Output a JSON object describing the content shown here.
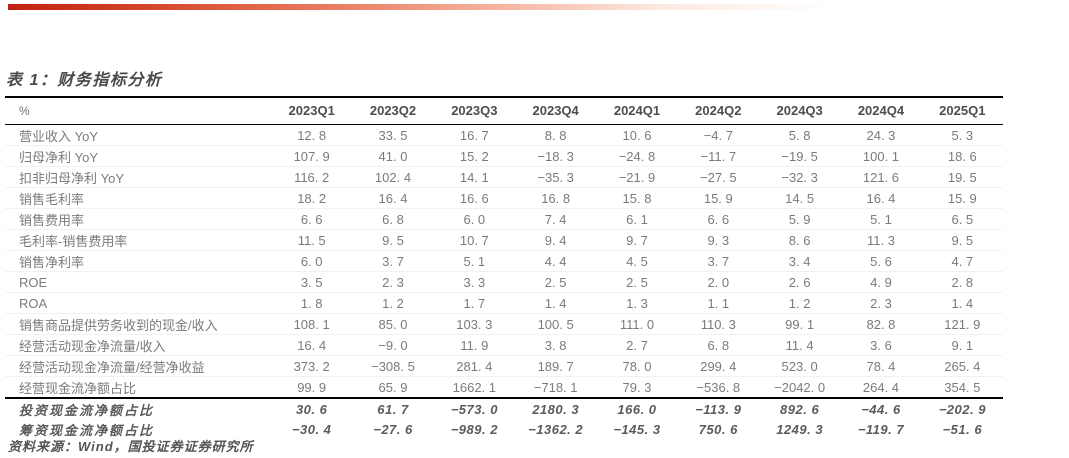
{
  "table_title": "表 1：财务指标分析",
  "colors": {
    "bar_gradient_start": "#c02112",
    "bar_gradient_end": "#ffffff",
    "table_border": "#000000",
    "body_text": "#7b7b7b",
    "header_text": "#4f4d4d",
    "title_text": "#4a4a4a"
  },
  "table": {
    "unit_header": "%",
    "columns": [
      "2023Q1",
      "2023Q2",
      "2023Q3",
      "2023Q4",
      "2024Q1",
      "2024Q2",
      "2024Q3",
      "2024Q4",
      "2025Q1"
    ],
    "rows": [
      {
        "label": "营业收入 YoY",
        "emphasis": false,
        "values": [
          "12. 8",
          "33. 5",
          "16. 7",
          "8. 8",
          "10. 6",
          "−4. 7",
          "5. 8",
          "24. 3",
          "5. 3"
        ]
      },
      {
        "label": "归母净利 YoY",
        "emphasis": false,
        "values": [
          "107. 9",
          "41. 0",
          "15. 2",
          "−18. 3",
          "−24. 8",
          "−11. 7",
          "−19. 5",
          "100. 1",
          "18. 6"
        ]
      },
      {
        "label": "扣非归母净利 YoY",
        "emphasis": false,
        "values": [
          "116. 2",
          "102. 4",
          "14. 1",
          "−35. 3",
          "−21. 9",
          "−27. 5",
          "−32. 3",
          "121. 6",
          "19. 5"
        ]
      },
      {
        "label": "销售毛利率",
        "emphasis": false,
        "values": [
          "18. 2",
          "16. 4",
          "16. 6",
          "16. 8",
          "15. 8",
          "15. 9",
          "14. 5",
          "16. 4",
          "15. 9"
        ]
      },
      {
        "label": "销售费用率",
        "emphasis": false,
        "values": [
          "6. 6",
          "6. 8",
          "6. 0",
          "7. 4",
          "6. 1",
          "6. 6",
          "5. 9",
          "5. 1",
          "6. 5"
        ]
      },
      {
        "label": "毛利率-销售费用率",
        "emphasis": false,
        "values": [
          "11. 5",
          "9. 5",
          "10. 7",
          "9. 4",
          "9. 7",
          "9. 3",
          "8. 6",
          "11. 3",
          "9. 5"
        ]
      },
      {
        "label": "销售净利率",
        "emphasis": false,
        "values": [
          "6. 0",
          "3. 7",
          "5. 1",
          "4. 4",
          "4. 5",
          "3. 7",
          "3. 4",
          "5. 6",
          "4. 7"
        ]
      },
      {
        "label": "ROE",
        "emphasis": false,
        "values": [
          "3. 5",
          "2. 3",
          "3. 3",
          "2. 5",
          "2. 5",
          "2. 0",
          "2. 6",
          "4. 9",
          "2. 8"
        ]
      },
      {
        "label": "ROA",
        "emphasis": false,
        "values": [
          "1. 8",
          "1. 2",
          "1. 7",
          "1. 4",
          "1. 3",
          "1. 1",
          "1. 2",
          "2. 3",
          "1. 4"
        ]
      },
      {
        "label": "销售商品提供劳务收到的现金/收入",
        "emphasis": false,
        "values": [
          "108. 1",
          "85. 0",
          "103. 3",
          "100. 5",
          "111. 0",
          "110. 3",
          "99. 1",
          "82. 8",
          "121. 9"
        ]
      },
      {
        "label": "经营活动现金净流量/收入",
        "emphasis": false,
        "values": [
          "16. 4",
          "−9. 0",
          "11. 9",
          "3. 8",
          "2. 7",
          "6. 8",
          "11. 4",
          "3. 6",
          "9. 1"
        ]
      },
      {
        "label": "经营活动现金净流量/经营净收益",
        "emphasis": false,
        "values": [
          "373. 2",
          "−308. 5",
          "281. 4",
          "189. 7",
          "78. 0",
          "299. 4",
          "523. 0",
          "78. 4",
          "265. 4"
        ]
      },
      {
        "label": "经营现金流净额占比",
        "emphasis": false,
        "values": [
          "99. 9",
          "65. 9",
          "1662. 1",
          "−718. 1",
          "79. 3",
          "−536. 8",
          "−2042. 0",
          "264. 4",
          "354. 5"
        ]
      },
      {
        "label": "投资现金流净额占比",
        "emphasis": true,
        "values": [
          "30. 6",
          "61. 7",
          "−573. 0",
          "2180. 3",
          "166. 0",
          "−113. 9",
          "892. 6",
          "−44. 6",
          "−202. 9"
        ]
      },
      {
        "label": "筹资现金流净额占比",
        "emphasis": true,
        "values": [
          "−30. 4",
          "−27. 6",
          "−989. 2",
          "−1362. 2",
          "−145. 3",
          "750. 6",
          "1249. 3",
          "−119. 7",
          "−51. 6"
        ]
      }
    ]
  },
  "footer": {
    "source_label": "资料来源：Wind，国投证券证券研究所"
  }
}
